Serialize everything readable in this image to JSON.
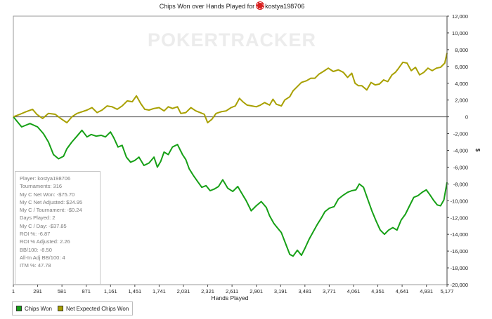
{
  "chart_data": {
    "type": "line",
    "title": "Chips Won over Hands Played for",
    "player_name": "kostya198706",
    "watermark": "POKERTRACKER",
    "xlabel": "Hands Played",
    "ylabel": "$",
    "xlim": [
      1,
      5177
    ],
    "ylim": [
      -20000,
      12000
    ],
    "x_ticks": [
      1,
      291,
      581,
      871,
      1161,
      1451,
      1741,
      2031,
      2321,
      2611,
      2901,
      3191,
      3481,
      3771,
      4061,
      4351,
      4641,
      4931,
      5177
    ],
    "x_tick_labels": [
      "1",
      "291",
      "581",
      "871",
      "1,161",
      "1,451",
      "1,741",
      "2,031",
      "2,321",
      "2,611",
      "2,901",
      "3,191",
      "3,481",
      "3,771",
      "4,061",
      "4,351",
      "4,641",
      "4,931",
      "5,177"
    ],
    "y_ticks": [
      12000,
      10000,
      8000,
      6000,
      4000,
      2000,
      0,
      -2000,
      -4000,
      -6000,
      -8000,
      -10000,
      -12000,
      -14000,
      -16000,
      -18000,
      -20000
    ],
    "y_tick_labels": [
      "12,000",
      "10,000",
      "8,000",
      "6,000",
      "4,000",
      "2,000",
      "0",
      "-2,000",
      "-4,000",
      "-6,000",
      "-8,000",
      "-10,000",
      "-12,000",
      "-14,000",
      "-16,000",
      "-18,000",
      "-20,000"
    ],
    "grid": false,
    "legend_position": "bottom-left",
    "series": [
      {
        "name": "Chips Won",
        "color": "#16a016",
        "points": [
          [
            1,
            0
          ],
          [
            100,
            -1200
          ],
          [
            200,
            -800
          ],
          [
            290,
            -1200
          ],
          [
            360,
            -2000
          ],
          [
            420,
            -3000
          ],
          [
            480,
            -4500
          ],
          [
            540,
            -5000
          ],
          [
            600,
            -4700
          ],
          [
            640,
            -3800
          ],
          [
            700,
            -3000
          ],
          [
            760,
            -2300
          ],
          [
            820,
            -1600
          ],
          [
            880,
            -2400
          ],
          [
            930,
            -2100
          ],
          [
            990,
            -2300
          ],
          [
            1050,
            -2200
          ],
          [
            1100,
            -2400
          ],
          [
            1160,
            -1800
          ],
          [
            1200,
            -2500
          ],
          [
            1250,
            -3600
          ],
          [
            1300,
            -3400
          ],
          [
            1350,
            -4800
          ],
          [
            1400,
            -5400
          ],
          [
            1450,
            -5200
          ],
          [
            1500,
            -4800
          ],
          [
            1560,
            -5800
          ],
          [
            1620,
            -5500
          ],
          [
            1680,
            -4800
          ],
          [
            1720,
            -6000
          ],
          [
            1760,
            -5300
          ],
          [
            1800,
            -4200
          ],
          [
            1850,
            -4500
          ],
          [
            1900,
            -3600
          ],
          [
            1960,
            -3300
          ],
          [
            2020,
            -4500
          ],
          [
            2060,
            -5100
          ],
          [
            2100,
            -6200
          ],
          [
            2150,
            -7000
          ],
          [
            2200,
            -7700
          ],
          [
            2250,
            -8400
          ],
          [
            2300,
            -8200
          ],
          [
            2350,
            -8800
          ],
          [
            2400,
            -8600
          ],
          [
            2450,
            -8300
          ],
          [
            2500,
            -7500
          ],
          [
            2560,
            -8500
          ],
          [
            2620,
            -8900
          ],
          [
            2680,
            -8300
          ],
          [
            2720,
            -9000
          ],
          [
            2780,
            -10000
          ],
          [
            2840,
            -11200
          ],
          [
            2900,
            -10600
          ],
          [
            2960,
            -10100
          ],
          [
            3020,
            -10800
          ],
          [
            3060,
            -11800
          ],
          [
            3110,
            -12700
          ],
          [
            3150,
            -13200
          ],
          [
            3200,
            -13800
          ],
          [
            3250,
            -15100
          ],
          [
            3300,
            -16400
          ],
          [
            3340,
            -16600
          ],
          [
            3390,
            -15900
          ],
          [
            3440,
            -16500
          ],
          [
            3480,
            -15700
          ],
          [
            3530,
            -14600
          ],
          [
            3580,
            -13700
          ],
          [
            3630,
            -12800
          ],
          [
            3680,
            -12000
          ],
          [
            3720,
            -11300
          ],
          [
            3770,
            -10900
          ],
          [
            3830,
            -10700
          ],
          [
            3880,
            -9800
          ],
          [
            3930,
            -9400
          ],
          [
            3990,
            -9000
          ],
          [
            4040,
            -8800
          ],
          [
            4090,
            -8700
          ],
          [
            4130,
            -8000
          ],
          [
            4180,
            -8400
          ],
          [
            4230,
            -9800
          ],
          [
            4280,
            -11200
          ],
          [
            4330,
            -12400
          ],
          [
            4380,
            -13500
          ],
          [
            4430,
            -14000
          ],
          [
            4480,
            -13500
          ],
          [
            4530,
            -13200
          ],
          [
            4580,
            -13500
          ],
          [
            4630,
            -12300
          ],
          [
            4680,
            -11600
          ],
          [
            4730,
            -10600
          ],
          [
            4780,
            -9600
          ],
          [
            4830,
            -9400
          ],
          [
            4880,
            -9000
          ],
          [
            4930,
            -8700
          ],
          [
            4980,
            -9400
          ],
          [
            5020,
            -10000
          ],
          [
            5060,
            -10500
          ],
          [
            5100,
            -10600
          ],
          [
            5140,
            -9900
          ],
          [
            5177,
            -7800
          ]
        ]
      },
      {
        "name": "Net Expected Chips Won",
        "color": "#a8a000",
        "points": [
          [
            1,
            0
          ],
          [
            80,
            300
          ],
          [
            150,
            600
          ],
          [
            230,
            900
          ],
          [
            280,
            300
          ],
          [
            350,
            -200
          ],
          [
            420,
            400
          ],
          [
            500,
            300
          ],
          [
            580,
            -300
          ],
          [
            640,
            -700
          ],
          [
            700,
            0
          ],
          [
            760,
            400
          ],
          [
            820,
            600
          ],
          [
            880,
            800
          ],
          [
            940,
            1100
          ],
          [
            1000,
            500
          ],
          [
            1060,
            800
          ],
          [
            1120,
            1300
          ],
          [
            1180,
            1200
          ],
          [
            1240,
            900
          ],
          [
            1300,
            1300
          ],
          [
            1360,
            1900
          ],
          [
            1420,
            1800
          ],
          [
            1470,
            2500
          ],
          [
            1520,
            1600
          ],
          [
            1570,
            900
          ],
          [
            1620,
            800
          ],
          [
            1680,
            1000
          ],
          [
            1740,
            1100
          ],
          [
            1800,
            700
          ],
          [
            1850,
            1200
          ],
          [
            1900,
            1000
          ],
          [
            1960,
            1200
          ],
          [
            2000,
            400
          ],
          [
            2060,
            500
          ],
          [
            2120,
            1100
          ],
          [
            2180,
            700
          ],
          [
            2230,
            500
          ],
          [
            2280,
            300
          ],
          [
            2320,
            -700
          ],
          [
            2370,
            -300
          ],
          [
            2420,
            400
          ],
          [
            2480,
            600
          ],
          [
            2540,
            700
          ],
          [
            2600,
            1100
          ],
          [
            2650,
            1300
          ],
          [
            2700,
            2200
          ],
          [
            2740,
            1800
          ],
          [
            2790,
            1400
          ],
          [
            2850,
            1300
          ],
          [
            2900,
            1200
          ],
          [
            2950,
            1400
          ],
          [
            3000,
            1700
          ],
          [
            3060,
            1400
          ],
          [
            3100,
            2100
          ],
          [
            3140,
            1500
          ],
          [
            3200,
            1300
          ],
          [
            3240,
            2000
          ],
          [
            3300,
            2400
          ],
          [
            3340,
            3100
          ],
          [
            3400,
            3700
          ],
          [
            3440,
            4100
          ],
          [
            3500,
            4300
          ],
          [
            3550,
            4600
          ],
          [
            3600,
            4600
          ],
          [
            3650,
            5100
          ],
          [
            3700,
            5400
          ],
          [
            3760,
            5800
          ],
          [
            3820,
            5400
          ],
          [
            3880,
            5600
          ],
          [
            3940,
            5300
          ],
          [
            3990,
            4700
          ],
          [
            4040,
            5200
          ],
          [
            4080,
            4000
          ],
          [
            4120,
            3700
          ],
          [
            4160,
            3700
          ],
          [
            4220,
            3200
          ],
          [
            4270,
            4100
          ],
          [
            4320,
            3800
          ],
          [
            4370,
            3900
          ],
          [
            4420,
            4400
          ],
          [
            4470,
            4200
          ],
          [
            4520,
            5000
          ],
          [
            4560,
            5300
          ],
          [
            4600,
            5800
          ],
          [
            4650,
            6500
          ],
          [
            4700,
            6400
          ],
          [
            4750,
            5500
          ],
          [
            4800,
            5900
          ],
          [
            4850,
            5000
          ],
          [
            4900,
            5300
          ],
          [
            4950,
            5800
          ],
          [
            5000,
            5500
          ],
          [
            5050,
            5800
          ],
          [
            5100,
            5900
          ],
          [
            5150,
            6400
          ],
          [
            5177,
            7600
          ]
        ]
      }
    ]
  },
  "stats": {
    "lines": [
      "Player: kostya198706",
      "Tournaments: 316",
      "My C Net Won: -$75.70",
      "My C Net Adjusted: $24.95",
      "My C / Tournament: -$0.24",
      "Days Played: 2",
      "My C / Day: -$37.85",
      "ROI %: -6.87",
      "ROI % Adjusted: 2.26",
      "BB/100: -8.50",
      "All-In Adj BB/100: 4",
      "ITM %: 47.78"
    ]
  },
  "legend": {
    "items": [
      {
        "label": "Chips Won",
        "color": "#16a016"
      },
      {
        "label": "Net Expected Chips Won",
        "color": "#a8a000"
      }
    ]
  }
}
